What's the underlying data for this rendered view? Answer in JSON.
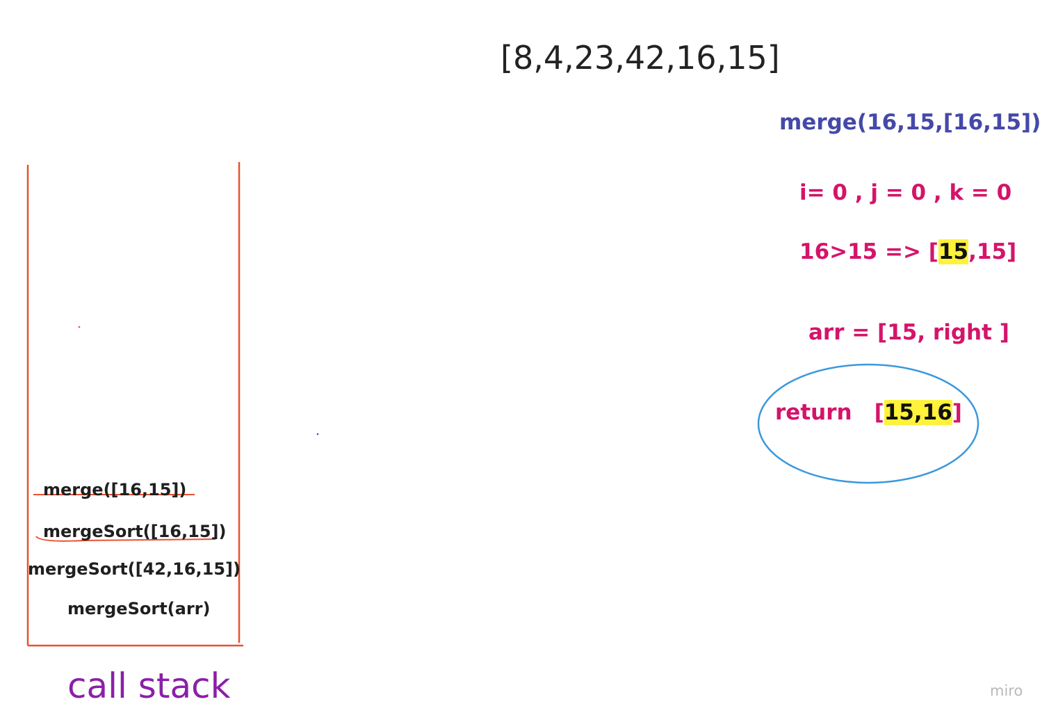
{
  "array_title": "[8,4,23,42,16,15]",
  "merge_call": "merge(16,15,[16,15])",
  "indices": "i= 0 , j = 0 , k = 0",
  "compare": {
    "prefix": "16>15 => [",
    "highlight": "15",
    "suffix": ",15]"
  },
  "arr_assign": "arr = [15, right ]",
  "return_line": {
    "keyword": "return",
    "open": "[",
    "highlight": "15,16",
    "close": "]"
  },
  "call_stack": {
    "items": [
      "merge([16,15])",
      "mergeSort([16,15])",
      "mergeSort([42,16,15])",
      "mergeSort(arr)"
    ],
    "label": "call stack"
  },
  "watermark": "miro",
  "colors": {
    "stack_border": "#e8502f",
    "merge_call": "#4449a8",
    "notes": "#d4146a",
    "highlight": "#fff23a",
    "ellipse": "#3a98dd",
    "label": "#8b1fa8"
  }
}
